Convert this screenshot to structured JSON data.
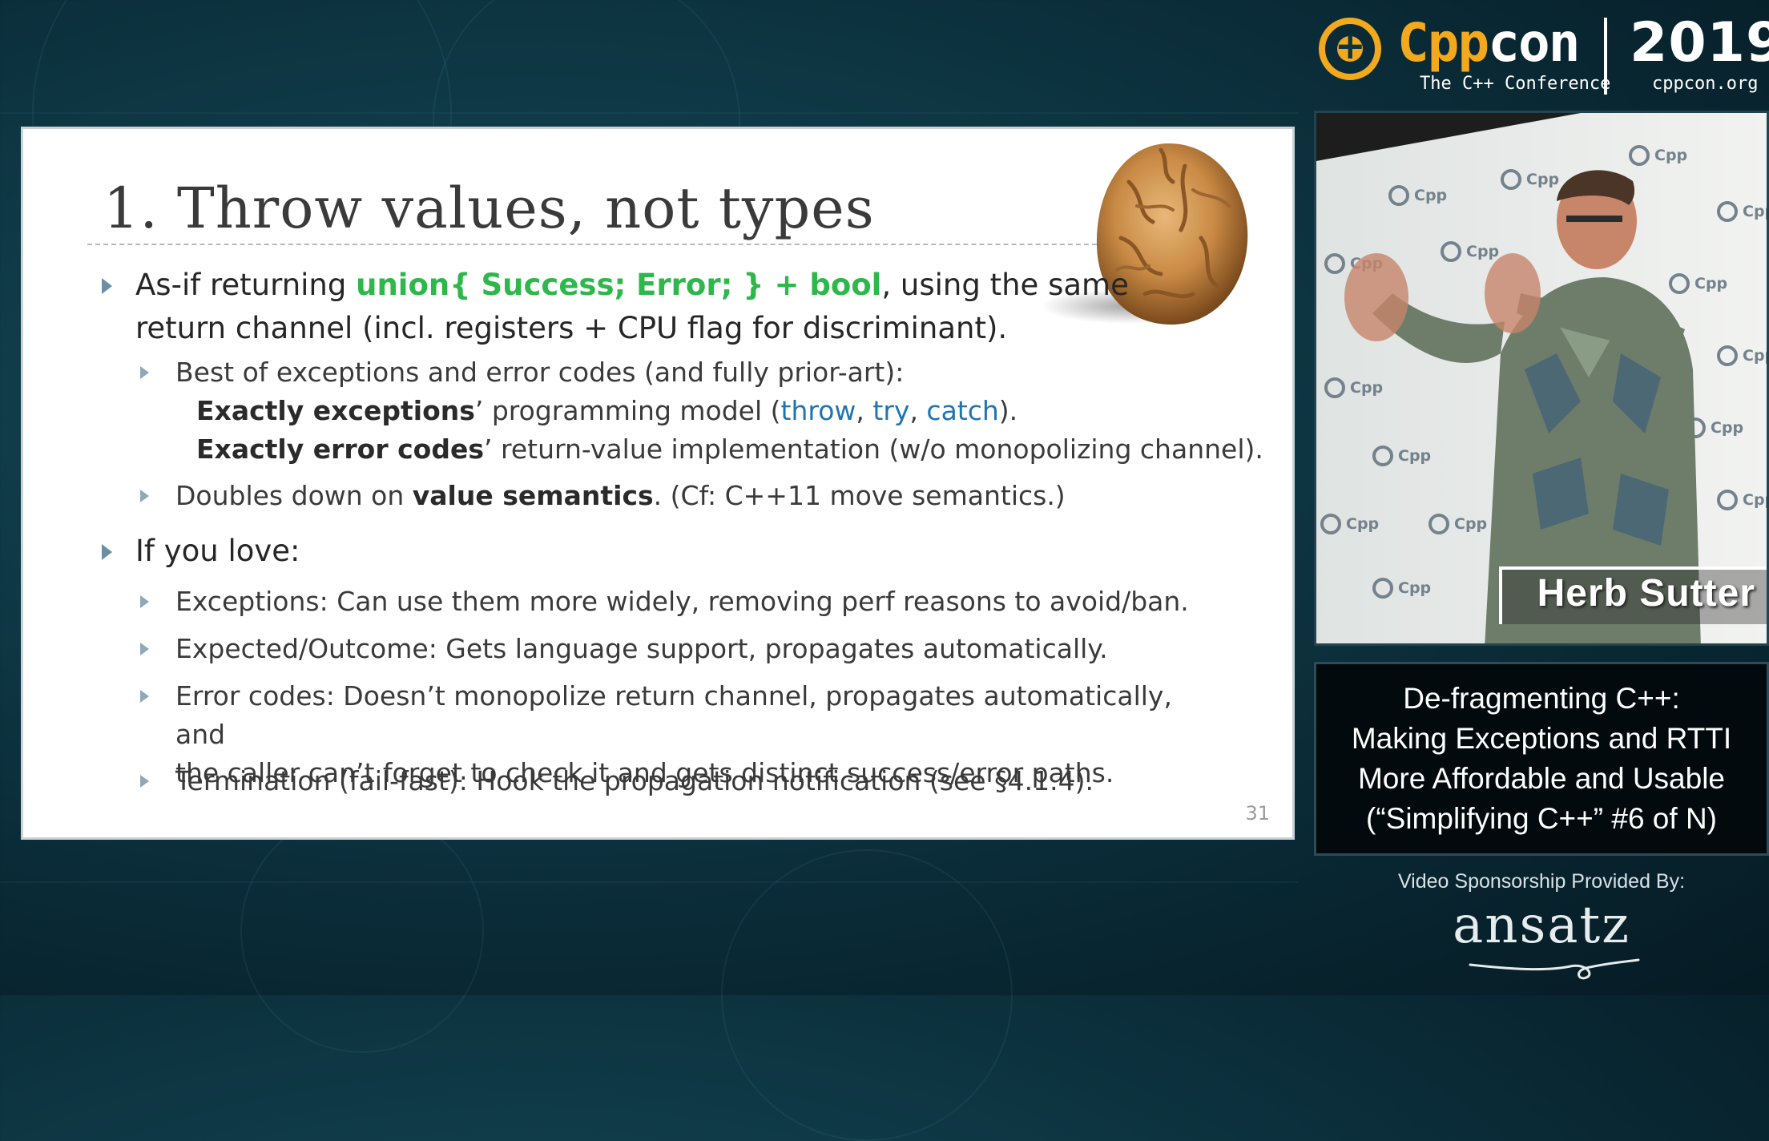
{
  "slide": {
    "title": "1. Throw values, not types",
    "page_number": "31",
    "bullet1": {
      "pre": "As-if returning ",
      "highlight": "union{ Success; Error; } + bool",
      "post": ", using the same",
      "line2": "return channel (incl. registers + CPU flag for discriminant)."
    },
    "sub1": "Best of exceptions and error codes (and fully prior-art):",
    "sub1_line2": {
      "bold": "Exactly exceptions",
      "mid": "’ programming model (",
      "kw1": "throw",
      "sep1": ", ",
      "kw2": "try",
      "sep2": ", ",
      "kw3": "catch",
      "end": ")."
    },
    "sub1_line3": {
      "bold": "Exactly error codes",
      "rest": "’ return-value implementation (w/o monopolizing channel)."
    },
    "sub2": {
      "pre": "Doubles down on ",
      "bold": "value semantics",
      "post": ". (Cf: C++11 move semantics.)"
    },
    "bullet2": "If you love:",
    "love_items": [
      "Exceptions: Can use them more widely, removing perf reasons to avoid/ban.",
      "Expected/Outcome: Gets language support, propagates automatically.",
      "Error codes: Doesn’t monopolize return channel, propagates automatically, and",
      "the caller can’t forget to check it and gets distinct success/error paths.",
      "Termination (fail-fast): Hook the propagation notification (see §4.1.4)."
    ]
  },
  "logo": {
    "cpp": "Cpp",
    "con": "con",
    "subtitle": "The C++ Conference",
    "year": "2019",
    "url": "cppcon.org"
  },
  "video": {
    "speaker_name": "Herb Sutter",
    "wall_text": "Cpp"
  },
  "talk_title": {
    "line1": "De-fragmenting C++:",
    "line2": "Making Exceptions and RTTI",
    "line3": "More Affordable and Usable",
    "line4": "(“Simplifying C++” #6 of N)"
  },
  "sponsor": {
    "label": "Video Sponsorship Provided By:",
    "name": "ansatz"
  },
  "colors": {
    "accent_orange": "#f2a91e",
    "highlight_green": "#2eb84b",
    "keyword_blue": "#1f74b4"
  }
}
